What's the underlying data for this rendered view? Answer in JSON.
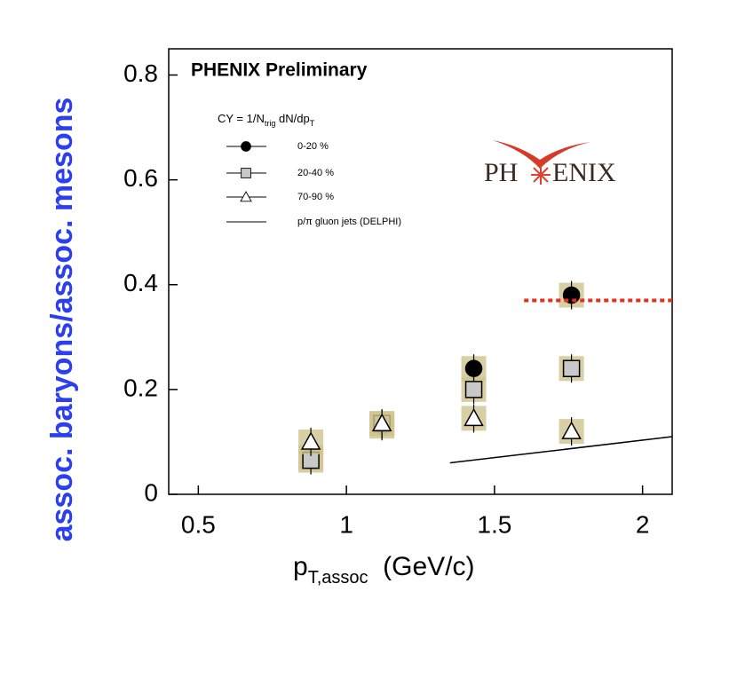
{
  "chart_data": {
    "type": "scatter",
    "annotation": "PHENIX Preliminary",
    "logo": [
      "PH",
      "ENIX"
    ],
    "y_label": "assoc. baryons/assoc. mesons",
    "x_label": [
      "p",
      "T,assoc",
      "  (GeV/c)"
    ],
    "legend_title": [
      "CY = 1/N",
      "trig",
      " dN/dp",
      "T"
    ],
    "xlim": [
      0.4,
      2.1
    ],
    "ylim": [
      0,
      0.85
    ],
    "xticks": [
      0.5,
      1,
      1.5,
      2
    ],
    "yticks": [
      0,
      0.2,
      0.4,
      0.6,
      0.8
    ],
    "sys_color": "#cfc38f",
    "series": [
      {
        "name": "0-20 %",
        "marker": "circle",
        "color": "#000000",
        "x": [
          0.88,
          1.12,
          1.43,
          1.76
        ],
        "values": [
          0.07,
          0.13,
          0.24,
          0.38
        ]
      },
      {
        "name": "20-40 %",
        "marker": "square",
        "color": "#c8c8c8",
        "x": [
          0.88,
          1.12,
          1.43,
          1.76
        ],
        "values": [
          0.065,
          0.135,
          0.2,
          0.24
        ]
      },
      {
        "name": "70-90 %",
        "marker": "triangle",
        "color": "#ffffff",
        "x": [
          0.88,
          1.12,
          1.43,
          1.76
        ],
        "values": [
          0.1,
          0.135,
          0.145,
          0.12
        ]
      },
      {
        "name": "p/π gluon jets (DELPHI)",
        "marker": "line",
        "color": "#000000",
        "x": [
          1.35,
          2.1
        ],
        "values": [
          0.06,
          0.11
        ]
      }
    ],
    "reference_line": {
      "x": [
        1.6,
        2.1
      ],
      "values": [
        0.37,
        0.37
      ],
      "color": "#e0301e"
    }
  }
}
